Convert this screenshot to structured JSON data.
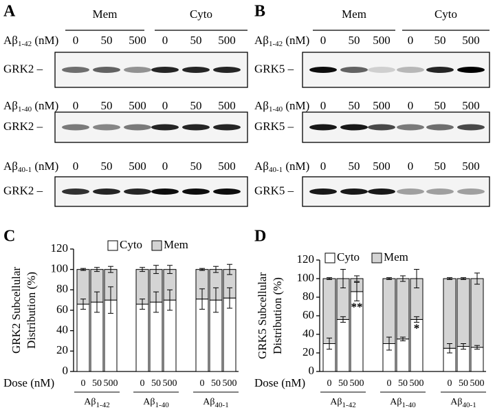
{
  "blots": [
    {
      "letter": "A",
      "groups": [
        "Mem",
        "Cyto"
      ],
      "rows": [
        {
          "peptide": {
            "base": "Aβ",
            "sub": "1-42"
          },
          "unit": " (nM)",
          "doses": [
            0,
            50,
            500,
            0,
            50,
            500
          ],
          "protein": "GRK2 –"
        },
        {
          "peptide": {
            "base": "Aβ",
            "sub": "1-40"
          },
          "unit": " (nM)",
          "doses": [
            0,
            50,
            500,
            0,
            50,
            500
          ],
          "protein": "GRK2 –"
        },
        {
          "peptide": {
            "base": "Aβ",
            "sub": "40-1"
          },
          "unit": " (nM)",
          "doses": [
            0,
            50,
            500,
            0,
            50,
            500
          ],
          "protein": "GRK2 –"
        }
      ]
    },
    {
      "letter": "B",
      "groups": [
        "Mem",
        "Cyto"
      ],
      "rows": [
        {
          "peptide": {
            "base": "Aβ",
            "sub": "1-42"
          },
          "unit": " (nM)",
          "doses": [
            0,
            50,
            500,
            0,
            50,
            500
          ],
          "protein": "GRK5 –"
        },
        {
          "peptide": {
            "base": "Aβ",
            "sub": "1-40"
          },
          "unit": " (nM)",
          "doses": [
            0,
            50,
            500,
            0,
            50,
            500
          ],
          "protein": "GRK5 –"
        },
        {
          "peptide": {
            "base": "Aβ",
            "sub": "40-1"
          },
          "unit": " (nM)",
          "doses": [
            0,
            50,
            500,
            0,
            50,
            500
          ],
          "protein": "GRK5 –"
        }
      ]
    }
  ],
  "chart_data": [
    {
      "type": "bar",
      "stacked": true,
      "letter": "C",
      "ylabel": [
        "GRK2 Subcellular",
        "Distribution (%)"
      ],
      "xlabel": "Dose (nM)",
      "categories": [
        0,
        50,
        500,
        0,
        50,
        500,
        0,
        50,
        500
      ],
      "groups": [
        {
          "base": "Aβ",
          "sub": "1-42"
        },
        {
          "base": "Aβ",
          "sub": "1-40"
        },
        {
          "base": "Aβ",
          "sub": "40-1"
        }
      ],
      "series": [
        {
          "name": "Cyto",
          "color": "#ffffff",
          "values": [
            66,
            68,
            70,
            66,
            68,
            70,
            71,
            70,
            72
          ],
          "errors": [
            5,
            10,
            13,
            5,
            10,
            10,
            10,
            12,
            10
          ]
        },
        {
          "name": "Mem",
          "color": "#d4d4d4",
          "values": [
            34,
            32,
            30,
            34,
            32,
            30,
            29,
            30,
            28
          ],
          "errors": [
            1,
            2,
            3,
            2,
            4,
            4,
            1,
            3,
            5
          ]
        }
      ],
      "value_annotations": [
        null,
        null,
        null,
        null,
        null,
        null,
        null,
        null,
        null
      ],
      "ylim": [
        0,
        120
      ],
      "yticks": [
        0,
        20,
        40,
        60,
        80,
        100,
        120
      ]
    },
    {
      "type": "bar",
      "stacked": true,
      "letter": "D",
      "ylabel": [
        "GRK5 Subcellular",
        "Distribution (%)"
      ],
      "xlabel": "Dose (nM)",
      "categories": [
        0,
        50,
        500,
        0,
        50,
        500,
        0,
        50,
        500
      ],
      "groups": [
        {
          "base": "Aβ",
          "sub": "1-42"
        },
        {
          "base": "Aβ",
          "sub": "1-40"
        },
        {
          "base": "Aβ",
          "sub": "40-1"
        }
      ],
      "series": [
        {
          "name": "Cyto",
          "color": "#ffffff",
          "values": [
            30,
            56,
            86,
            30,
            35,
            56,
            25,
            27,
            26
          ],
          "errors": [
            6,
            3,
            10,
            7,
            2,
            3,
            5,
            3,
            2
          ]
        },
        {
          "name": "Mem",
          "color": "#d4d4d4",
          "values": [
            70,
            44,
            14,
            70,
            65,
            44,
            75,
            73,
            74
          ],
          "errors": [
            1,
            10,
            3,
            1,
            3,
            10,
            1,
            1,
            6
          ]
        }
      ],
      "value_annotations": [
        null,
        null,
        "**",
        null,
        null,
        "*",
        null,
        null,
        null
      ],
      "ylim": [
        0,
        120
      ],
      "yticks": [
        0,
        20,
        40,
        60,
        80,
        100,
        120
      ]
    }
  ]
}
